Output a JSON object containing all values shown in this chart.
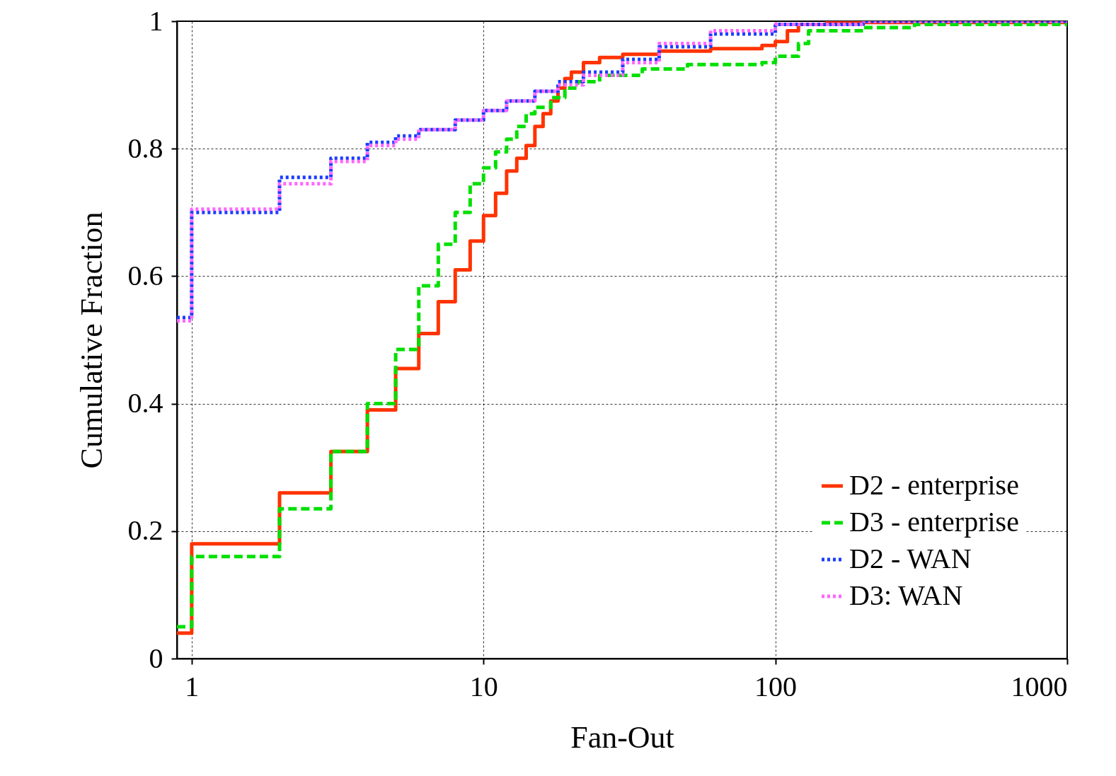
{
  "chart_data": {
    "type": "step",
    "xlabel": "Fan-Out",
    "ylabel": "Cumulative Fraction",
    "log": "x",
    "xlim": [
      0.89,
      1000
    ],
    "xticks": [
      1,
      10,
      100,
      1000
    ],
    "ylim": [
      0,
      1
    ],
    "yticks": [
      0,
      0.2,
      0.4,
      0.6,
      0.8,
      1
    ],
    "grid": true,
    "legend": "bottom right",
    "series": [
      {
        "name": "D2 - enterprise",
        "color": "#ff3300",
        "line_style": "solid",
        "x": [
          0.89,
          1,
          2,
          3,
          4,
          5,
          6,
          7,
          8,
          9,
          10,
          11,
          12,
          13,
          14,
          15,
          16,
          17,
          18,
          19,
          20,
          22,
          25,
          30,
          40,
          60,
          90,
          100,
          110,
          120,
          150,
          1000
        ],
        "values": [
          0.04,
          0.18,
          0.26,
          0.325,
          0.39,
          0.455,
          0.51,
          0.56,
          0.61,
          0.655,
          0.695,
          0.73,
          0.765,
          0.785,
          0.805,
          0.835,
          0.855,
          0.875,
          0.895,
          0.91,
          0.92,
          0.935,
          0.943,
          0.948,
          0.953,
          0.957,
          0.962,
          0.968,
          0.985,
          0.995,
          0.998,
          1
        ]
      },
      {
        "name": "D3 - enterprise",
        "color": "#00e000",
        "line_style": "dashed",
        "x": [
          0.89,
          1,
          2,
          3,
          4,
          5,
          6,
          7,
          8,
          9,
          10,
          11,
          12,
          13,
          14,
          15,
          17,
          19,
          21,
          25,
          35,
          50,
          90,
          100,
          120,
          130,
          200,
          300,
          1000
        ],
        "values": [
          0.05,
          0.16,
          0.235,
          0.325,
          0.4,
          0.485,
          0.585,
          0.65,
          0.7,
          0.745,
          0.77,
          0.795,
          0.815,
          0.835,
          0.855,
          0.865,
          0.88,
          0.895,
          0.905,
          0.915,
          0.925,
          0.932,
          0.935,
          0.945,
          0.965,
          0.985,
          0.99,
          0.995,
          1
        ]
      },
      {
        "name": "D2 - WAN",
        "color": "#1a3cff",
        "line_style": "dotted",
        "x": [
          0.89,
          1,
          2,
          3,
          4,
          5,
          6,
          8,
          10,
          12,
          15,
          18,
          22,
          30,
          40,
          60,
          100,
          200,
          1000
        ],
        "values": [
          0.535,
          0.7,
          0.755,
          0.785,
          0.81,
          0.82,
          0.83,
          0.845,
          0.86,
          0.875,
          0.89,
          0.905,
          0.92,
          0.94,
          0.96,
          0.98,
          0.995,
          1,
          1
        ]
      },
      {
        "name": "D3: WAN",
        "color": "#ff66ff",
        "line_style": "dotted",
        "x": [
          0.89,
          1,
          2,
          3,
          4,
          5,
          6,
          8,
          10,
          12,
          15,
          18,
          22,
          30,
          40,
          60,
          100,
          200,
          1000
        ],
        "values": [
          0.53,
          0.705,
          0.745,
          0.78,
          0.805,
          0.815,
          0.83,
          0.845,
          0.86,
          0.875,
          0.89,
          0.9,
          0.915,
          0.935,
          0.965,
          0.985,
          0.995,
          1,
          1
        ]
      }
    ]
  }
}
